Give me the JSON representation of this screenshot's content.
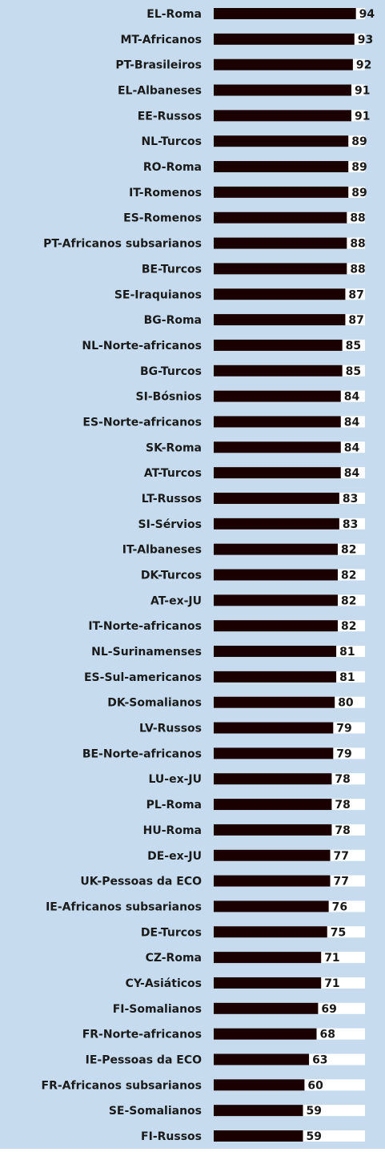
{
  "chart_data": {
    "type": "bar",
    "orientation": "horizontal",
    "categories": [
      "EL-Roma",
      "MT-Africanos",
      "PT-Brasileiros",
      "EL-Albaneses",
      "EE-Russos",
      "NL-Turcos",
      "RO-Roma",
      "IT-Romenos",
      "ES-Romenos",
      "PT-Africanos subsarianos",
      "BE-Turcos",
      "SE-Iraquianos",
      "BG-Roma",
      "NL-Norte-africanos",
      "BG-Turcos",
      "SI-Bósnios",
      "ES-Norte-africanos",
      "SK-Roma",
      "AT-Turcos",
      "LT-Russos",
      "SI-Sérvios",
      "IT-Albaneses",
      "DK-Turcos",
      "AT-ex-JU",
      "IT-Norte-africanos",
      "NL-Surinamenses",
      "ES-Sul-americanos",
      "DK-Somalianos",
      "LV-Russos",
      "BE-Norte-africanos",
      "LU-ex-JU",
      "PL-Roma",
      "HU-Roma",
      "DE-ex-JU",
      "UK-Pessoas da ECO",
      "IE-Africanos subsarianos",
      "DE-Turcos",
      "CZ-Roma",
      "CY-Asiáticos",
      "FI-Somalianos",
      "FR-Norte-africanos",
      "IE-Pessoas da ECO",
      "FR-Africanos subsarianos",
      "SE-Somalianos",
      "FI-Russos"
    ],
    "values": [
      94,
      93,
      92,
      91,
      91,
      89,
      89,
      89,
      88,
      88,
      88,
      87,
      87,
      85,
      85,
      84,
      84,
      84,
      84,
      83,
      83,
      82,
      82,
      82,
      82,
      81,
      81,
      80,
      79,
      79,
      78,
      78,
      78,
      77,
      77,
      76,
      75,
      71,
      71,
      69,
      68,
      63,
      60,
      59,
      59
    ],
    "color": "#1a0000",
    "track_color": "#ffffff",
    "background": "#c6dcee",
    "xlim": [
      0,
      100
    ]
  }
}
